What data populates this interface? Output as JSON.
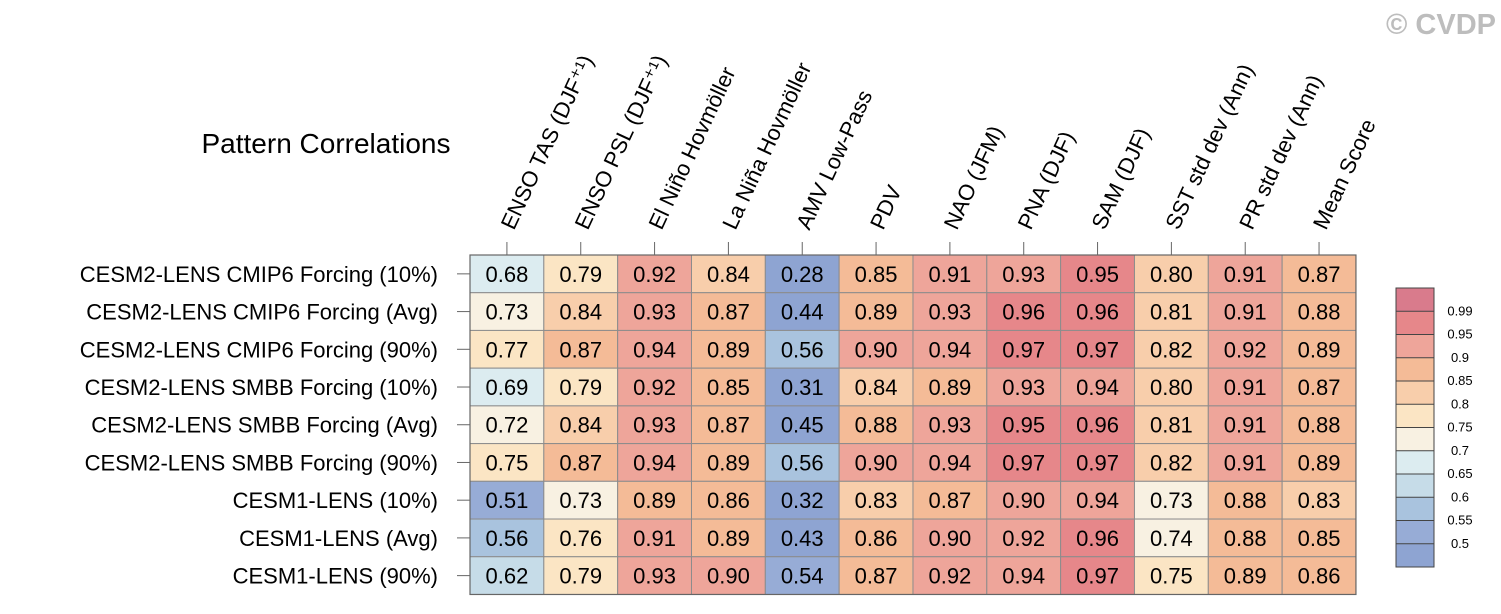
{
  "credit": "© CVDP",
  "chart_data": {
    "type": "heatmap",
    "title": "Pattern Correlations",
    "columns": [
      "ENSO TAS (DJF⁺¹)",
      "ENSO PSL (DJF⁺¹)",
      "El Niño Hovmöller",
      "La Niña Hovmöller",
      "AMV Low-Pass",
      "PDV",
      "NAO (JFM)",
      "PNA (DJF)",
      "SAM (DJF)",
      "SST std dev (Ann)",
      "PR std dev (Ann)",
      "Mean Score"
    ],
    "rows": [
      "CESM2-LENS CMIP6 Forcing (10%)",
      "CESM2-LENS CMIP6 Forcing (Avg)",
      "CESM2-LENS CMIP6 Forcing (90%)",
      "CESM2-LENS SMBB Forcing (10%)",
      "CESM2-LENS SMBB Forcing (Avg)",
      "CESM2-LENS SMBB Forcing (90%)",
      "CESM1-LENS (10%)",
      "CESM1-LENS (Avg)",
      "CESM1-LENS (90%)"
    ],
    "values": [
      [
        "0.68",
        "0.79",
        "0.92",
        "0.84",
        "0.28",
        "0.85",
        "0.91",
        "0.93",
        "0.95",
        "0.80",
        "0.91",
        "0.87"
      ],
      [
        "0.73",
        "0.84",
        "0.93",
        "0.87",
        "0.44",
        "0.89",
        "0.93",
        "0.96",
        "0.96",
        "0.81",
        "0.91",
        "0.88"
      ],
      [
        "0.77",
        "0.87",
        "0.94",
        "0.89",
        "0.56",
        "0.90",
        "0.94",
        "0.97",
        "0.97",
        "0.82",
        "0.92",
        "0.89"
      ],
      [
        "0.69",
        "0.79",
        "0.92",
        "0.85",
        "0.31",
        "0.84",
        "0.89",
        "0.93",
        "0.94",
        "0.80",
        "0.91",
        "0.87"
      ],
      [
        "0.72",
        "0.84",
        "0.93",
        "0.87",
        "0.45",
        "0.88",
        "0.93",
        "0.95",
        "0.96",
        "0.81",
        "0.91",
        "0.88"
      ],
      [
        "0.75",
        "0.87",
        "0.94",
        "0.89",
        "0.56",
        "0.90",
        "0.94",
        "0.97",
        "0.97",
        "0.82",
        "0.91",
        "0.89"
      ],
      [
        "0.51",
        "0.73",
        "0.89",
        "0.86",
        "0.32",
        "0.83",
        "0.87",
        "0.90",
        "0.94",
        "0.73",
        "0.88",
        "0.83"
      ],
      [
        "0.56",
        "0.76",
        "0.91",
        "0.89",
        "0.43",
        "0.86",
        "0.90",
        "0.92",
        "0.96",
        "0.74",
        "0.88",
        "0.85"
      ],
      [
        "0.62",
        "0.79",
        "0.93",
        "0.90",
        "0.54",
        "0.87",
        "0.92",
        "0.94",
        "0.97",
        "0.75",
        "0.89",
        "0.86"
      ]
    ],
    "colorbar": {
      "levels": [
        "0.99",
        "0.95",
        "0.9",
        "0.85",
        "0.8",
        "0.75",
        "0.7",
        "0.65",
        "0.6",
        "0.55",
        "0.5"
      ],
      "colors": [
        "#d97b8c",
        "#e6878a",
        "#eea59a",
        "#f4bb97",
        "#f8ceab",
        "#fbe5c4",
        "#f8f1e2",
        "#dcecf0",
        "#c6dce8",
        "#a9c3de",
        "#97acd6",
        "#8ea4d2"
      ]
    }
  }
}
